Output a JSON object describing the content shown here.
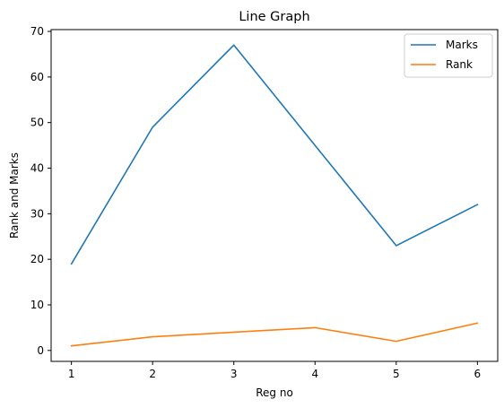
{
  "chart_data": {
    "type": "line",
    "title": "Line Graph",
    "xlabel": "Reg no",
    "ylabel": "Rank and Marks",
    "x": [
      1,
      2,
      3,
      4,
      5,
      6
    ],
    "xlim": [
      0.75,
      6.25
    ],
    "ylim": [
      -2.4,
      70.4
    ],
    "xticks": [
      1,
      2,
      3,
      4,
      5,
      6
    ],
    "yticks": [
      0,
      10,
      20,
      30,
      40,
      50,
      60,
      70
    ],
    "grid": false,
    "legend_position": "top-right",
    "series": [
      {
        "name": "Marks",
        "values": [
          19,
          49,
          67,
          45,
          23,
          32
        ],
        "color": "#1f77b4"
      },
      {
        "name": "Rank",
        "values": [
          1,
          3,
          4,
          5,
          2,
          6
        ],
        "color": "#ff7f0e"
      }
    ]
  }
}
